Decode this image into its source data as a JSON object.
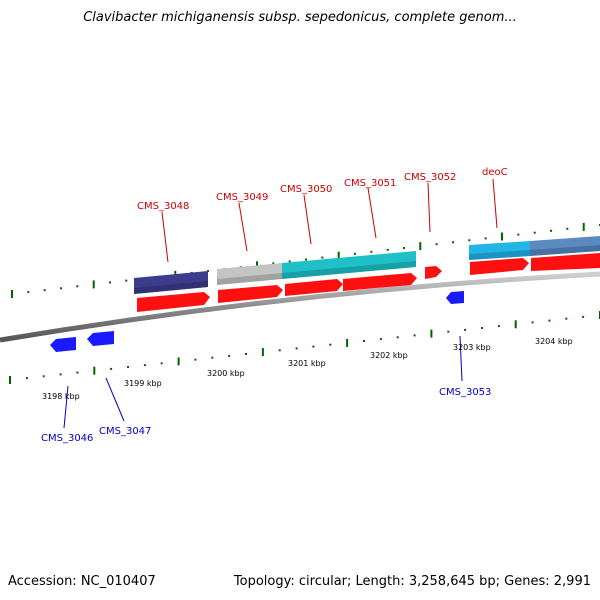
{
  "title": "Clavibacter michiganensis subsp. sepedonicus, complete genom...",
  "accession": "Accession: NC_010407",
  "summary": "Topology: circular; Length: 3,258,645 bp; Genes: 2,991",
  "colors": {
    "backbone": "#8c8c8c",
    "cds_forward": "#ff0000",
    "cds_reverse": "#0000ff",
    "label_forward": "#cc0000",
    "label_reverse": "#0000cc",
    "tick": "#006400"
  },
  "scale": {
    "labels": [
      "3198 kbp",
      "3199 kbp",
      "3200 kbp",
      "3201 kbp",
      "3202 kbp",
      "3203 kbp",
      "3204 kbp"
    ]
  },
  "genes_forward": [
    {
      "name": "CMS_3048",
      "color": "#ff0000"
    },
    {
      "name": "CMS_3049",
      "color": "#ff0000"
    },
    {
      "name": "CMS_3050",
      "color": "#ff0000"
    },
    {
      "name": "CMS_3051",
      "color": "#ff0000"
    },
    {
      "name": "CMS_3052",
      "color": "#ff0000"
    },
    {
      "name": "deoC",
      "color": "#ff0000"
    }
  ],
  "genes_reverse": [
    {
      "name": "CMS_3046",
      "color": "#0000ff"
    },
    {
      "name": "CMS_3047",
      "color": "#0000ff"
    },
    {
      "name": "CMS_3053",
      "color": "#0000ff"
    }
  ],
  "feature_bars": [
    {
      "name": "cog-bar-1",
      "color": "#3c3c8c"
    },
    {
      "name": "cog-bar-2",
      "color": "#c0c0c0"
    },
    {
      "name": "cog-bar-3",
      "color": "#20c0c8"
    },
    {
      "name": "cog-bar-4",
      "color": "#22b5e6"
    },
    {
      "name": "cog-bar-5",
      "color": "#5a8ac0"
    }
  ]
}
